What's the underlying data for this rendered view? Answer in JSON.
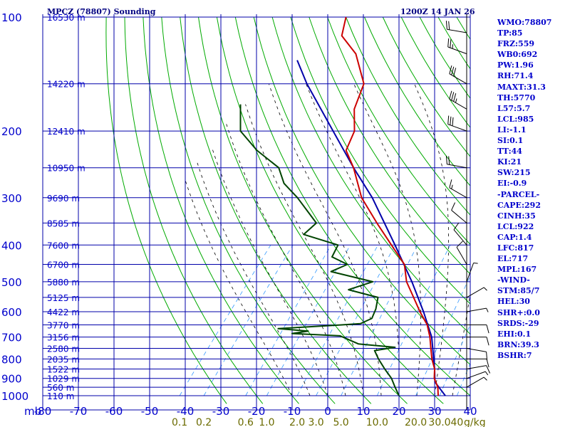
{
  "header": {
    "title": "MPCZ (78807) Sounding",
    "time": "1200Z 14 JAN 26"
  },
  "indices": [
    "WMO:78807",
    "TP:85",
    "FRZ:559",
    "WB0:692",
    "PW:1.96",
    "RH:71.4",
    "MAXT:31.3",
    "TH:5770",
    "L57:5.7",
    "LCL:985",
    "LI:-1.1",
    "SI:0.1",
    "TT:44",
    "KI:21",
    "SW:215",
    "EI:-0.9",
    "-PARCEL-",
    "CAPE:292",
    "CINH:35",
    "LCL:922",
    "CAP:1.4",
    "LFC:817",
    "EL:717",
    "MPL:167",
    "-WIND-",
    "STM:85/7",
    "HEL:30",
    "SHR+:0.0",
    "SRDS:-29",
    "EHI:0.1",
    "BRN:39.3",
    "BSHR:7"
  ],
  "colors": {
    "grid": "#0000aa",
    "dry_adiabat": "#00aa00",
    "moist_adiabat": "#000000",
    "mixing_ratio": "#3399ff",
    "temperature": "#cc0000",
    "dewpoint": "#004400",
    "parcel": "#0000aa",
    "text": "#0000cc",
    "mixing_label": "#6b6b00"
  },
  "chart_data": {
    "type": "skew-t",
    "pressure_unit_label": "mb",
    "mixing_ratio_unit_label": "g/kg",
    "pressure_ticks": [
      100,
      200,
      300,
      400,
      500,
      600,
      700,
      800,
      900,
      1000
    ],
    "pressure_labels": [
      "100",
      "200",
      "300",
      "400",
      "500",
      "600",
      "700",
      "800",
      "900",
      "1000"
    ],
    "temperature_ticks": [
      -80,
      -70,
      -60,
      -50,
      -40,
      -30,
      -20,
      -10,
      0,
      10,
      20,
      30,
      40
    ],
    "temperature_labels": [
      "-80",
      "-70",
      "-60",
      "-50",
      "-40",
      "-30",
      "-20",
      "-10",
      "0",
      "10",
      "20",
      "30",
      "40"
    ],
    "mixing_ratio_ticks": [
      0.1,
      0.2,
      0.6,
      1.0,
      2.0,
      3.0,
      5.0,
      10.0,
      20.0,
      30.0,
      40.0
    ],
    "mixing_ratio_labels": [
      "0.1",
      "0.2",
      "0.6",
      "1.0",
      "2.0",
      "3.0",
      "5.0",
      "10.0",
      "20.0",
      "30.0",
      "40"
    ],
    "height_labels": [
      {
        "p": 100,
        "text": "16530 m"
      },
      {
        "p": 150,
        "text": "14220 m"
      },
      {
        "p": 200,
        "text": "12410 m"
      },
      {
        "p": 250,
        "text": "10950 m"
      },
      {
        "p": 300,
        "text": "9690 m"
      },
      {
        "p": 350,
        "text": "8585 m"
      },
      {
        "p": 400,
        "text": "7600 m"
      },
      {
        "p": 450,
        "text": "6700 m"
      },
      {
        "p": 500,
        "text": "5880 m"
      },
      {
        "p": 550,
        "text": "5125 m"
      },
      {
        "p": 600,
        "text": "4422 m"
      },
      {
        "p": 650,
        "text": "3770 m"
      },
      {
        "p": 700,
        "text": "3156 m"
      },
      {
        "p": 750,
        "text": "2580 m"
      },
      {
        "p": 800,
        "text": "2035 m"
      },
      {
        "p": 850,
        "text": "1522 m"
      },
      {
        "p": 900,
        "text": "1029 m"
      },
      {
        "p": 950,
        "text": "560 m"
      },
      {
        "p": 1000,
        "text": "110 m"
      }
    ],
    "temperature_profile": [
      {
        "p": 100,
        "t": -80
      },
      {
        "p": 112,
        "t": -77
      },
      {
        "p": 125,
        "t": -69
      },
      {
        "p": 150,
        "t": -60
      },
      {
        "p": 175,
        "t": -57
      },
      {
        "p": 200,
        "t": -52
      },
      {
        "p": 225,
        "t": -50
      },
      {
        "p": 250,
        "t": -44
      },
      {
        "p": 300,
        "t": -35
      },
      {
        "p": 350,
        "t": -25
      },
      {
        "p": 400,
        "t": -16
      },
      {
        "p": 450,
        "t": -8
      },
      {
        "p": 500,
        "t": -3.5
      },
      {
        "p": 550,
        "t": 2
      },
      {
        "p": 600,
        "t": 7
      },
      {
        "p": 650,
        "t": 12
      },
      {
        "p": 700,
        "t": 15.5
      },
      {
        "p": 750,
        "t": 18.3
      },
      {
        "p": 800,
        "t": 21
      },
      {
        "p": 850,
        "t": 24
      },
      {
        "p": 900,
        "t": 26
      },
      {
        "p": 950,
        "t": 29
      },
      {
        "p": 1000,
        "t": 31
      }
    ],
    "dewpoint_profile": [
      {
        "p": 170,
        "t": -90
      },
      {
        "p": 200,
        "t": -84
      },
      {
        "p": 225,
        "t": -75
      },
      {
        "p": 250,
        "t": -65
      },
      {
        "p": 275,
        "t": -60
      },
      {
        "p": 300,
        "t": -53
      },
      {
        "p": 350,
        "t": -42
      },
      {
        "p": 375,
        "t": -43
      },
      {
        "p": 400,
        "t": -31
      },
      {
        "p": 430,
        "t": -30
      },
      {
        "p": 450,
        "t": -24
      },
      {
        "p": 470,
        "t": -27
      },
      {
        "p": 500,
        "t": -13
      },
      {
        "p": 525,
        "t": -18
      },
      {
        "p": 550,
        "t": -8
      },
      {
        "p": 590,
        "t": -6
      },
      {
        "p": 625,
        "t": -5
      },
      {
        "p": 645,
        "t": -7
      },
      {
        "p": 650,
        "t": -12
      },
      {
        "p": 665,
        "t": -29
      },
      {
        "p": 675,
        "t": -20
      },
      {
        "p": 685,
        "t": -24
      },
      {
        "p": 695,
        "t": -10
      },
      {
        "p": 730,
        "t": -3
      },
      {
        "p": 745,
        "t": 8
      },
      {
        "p": 760,
        "t": 3
      },
      {
        "p": 800,
        "t": 6
      },
      {
        "p": 850,
        "t": 10
      },
      {
        "p": 900,
        "t": 14
      },
      {
        "p": 950,
        "t": 17
      },
      {
        "p": 1000,
        "t": 20
      }
    ],
    "parcel_path": [
      {
        "p": 1000,
        "t": 33
      },
      {
        "p": 920,
        "t": 27
      },
      {
        "p": 850,
        "t": 24
      },
      {
        "p": 700,
        "t": 16
      },
      {
        "p": 600,
        "t": 8
      },
      {
        "p": 500,
        "t": -2
      },
      {
        "p": 400,
        "t": -15
      },
      {
        "p": 300,
        "t": -32
      },
      {
        "p": 250,
        "t": -44
      },
      {
        "p": 200,
        "t": -58
      },
      {
        "p": 150,
        "t": -76
      },
      {
        "p": 130,
        "t": -84
      }
    ],
    "wind_barbs": [
      {
        "p": 110,
        "dir": 280,
        "spd": 20
      },
      {
        "p": 125,
        "dir": 290,
        "spd": 25
      },
      {
        "p": 150,
        "dir": 300,
        "spd": 30
      },
      {
        "p": 175,
        "dir": 300,
        "spd": 35
      },
      {
        "p": 200,
        "dir": 290,
        "spd": 30
      },
      {
        "p": 250,
        "dir": 280,
        "spd": 20
      },
      {
        "p": 300,
        "dir": 300,
        "spd": 15
      },
      {
        "p": 350,
        "dir": 310,
        "spd": 10
      },
      {
        "p": 400,
        "dir": 320,
        "spd": 10
      },
      {
        "p": 450,
        "dir": 330,
        "spd": 10
      },
      {
        "p": 500,
        "dir": 20,
        "spd": 5
      },
      {
        "p": 550,
        "dir": 60,
        "spd": 5
      },
      {
        "p": 600,
        "dir": 80,
        "spd": 5
      },
      {
        "p": 650,
        "dir": 90,
        "spd": 10
      },
      {
        "p": 700,
        "dir": 90,
        "spd": 10
      },
      {
        "p": 750,
        "dir": 100,
        "spd": 10
      },
      {
        "p": 800,
        "dir": 90,
        "spd": 10
      },
      {
        "p": 850,
        "dir": 80,
        "spd": 10
      },
      {
        "p": 900,
        "dir": 70,
        "spd": 5
      },
      {
        "p": 950,
        "dir": 60,
        "spd": 5
      }
    ]
  }
}
